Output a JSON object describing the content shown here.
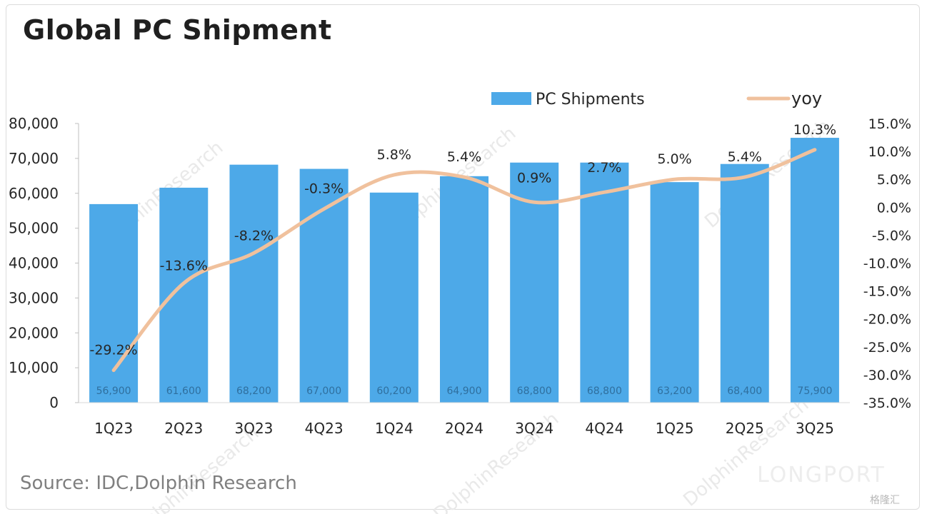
{
  "chart_data": {
    "type": "bar",
    "title": "Global PC Shipment",
    "categories": [
      "1Q23",
      "2Q23",
      "3Q23",
      "4Q23",
      "1Q24",
      "2Q24",
      "3Q24",
      "4Q24",
      "1Q25",
      "2Q25",
      "3Q25"
    ],
    "series": [
      {
        "name": "PC Shipments",
        "type": "bar",
        "axis": "left",
        "values": [
          56900,
          61600,
          68200,
          67000,
          60200,
          64900,
          68800,
          68800,
          63200,
          68400,
          75900
        ],
        "labels": [
          "56,900",
          "61,600",
          "68,200",
          "67,000",
          "60,200",
          "64,900",
          "68,800",
          "68,800",
          "63,200",
          "68,400",
          "75,900"
        ]
      },
      {
        "name": "yoy",
        "type": "line",
        "axis": "right",
        "values": [
          -29.2,
          -13.6,
          -8.2,
          -0.3,
          5.8,
          5.4,
          0.9,
          2.7,
          5.0,
          5.4,
          10.3
        ],
        "labels": [
          "-29.2%",
          "-13.6%",
          "-8.2%",
          "-0.3%",
          "5.8%",
          "5.4%",
          "0.9%",
          "2.7%",
          "5.0%",
          "5.4%",
          "10.3%"
        ]
      }
    ],
    "y_left": {
      "min": 0,
      "max": 80000,
      "ticks": [
        "0",
        "10,000",
        "20,000",
        "30,000",
        "40,000",
        "50,000",
        "60,000",
        "70,000",
        "80,000"
      ]
    },
    "y_right": {
      "min": -35,
      "max": 15,
      "ticks": [
        "-35.0%",
        "-30.0%",
        "-25.0%",
        "-20.0%",
        "-15.0%",
        "-10.0%",
        "-5.0%",
        "0.0%",
        "5.0%",
        "10.0%",
        "15.0%"
      ]
    },
    "legend_position": "top",
    "grid": false,
    "colors": {
      "bar": "#4da9e8",
      "line": "#f0c19d"
    }
  },
  "source": "Source: IDC,Dolphin Research",
  "watermark": {
    "text": "DolphinResearch",
    "brand": "LONGPORT",
    "badge": "格隆汇"
  }
}
